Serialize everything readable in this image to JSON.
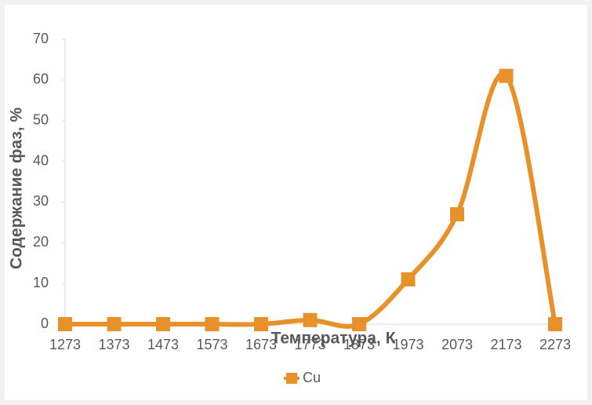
{
  "chart_data": {
    "type": "line",
    "smooth": true,
    "x_label": "Температура, К",
    "y_label": "Содержание фаз, %",
    "categories": [
      "1273",
      "1373",
      "1473",
      "1573",
      "1673",
      "1773",
      "1873",
      "1973",
      "2073",
      "2173",
      "2273"
    ],
    "series": [
      {
        "name": "Cu",
        "color": "#e8902a",
        "values": [
          0,
          0,
          0,
          0,
          0,
          1,
          0,
          11,
          27,
          61,
          0
        ]
      }
    ],
    "ylim": [
      0,
      70
    ],
    "yticks": [
      0,
      10,
      20,
      30,
      40,
      50,
      60,
      70
    ],
    "grid": false,
    "legend": "bottom"
  }
}
